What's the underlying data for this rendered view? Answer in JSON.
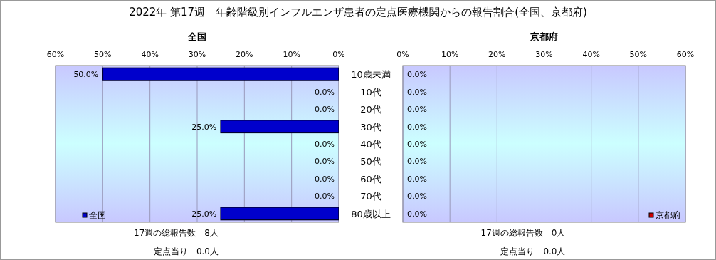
{
  "chart_data": [
    {
      "type": "bar",
      "orientation": "horizontal",
      "title": "2022年 第17週　年齢階級別インフルエンザ患者の定点医療機関からの報告割合(全国、京都府)",
      "subtitle": "全国",
      "categories": [
        "10歳未満",
        "10代",
        "20代",
        "30代",
        "40代",
        "50代",
        "60代",
        "70代",
        "80歳以上"
      ],
      "series": [
        {
          "name": "全国",
          "color": "#0000cc",
          "values": [
            50,
            0,
            0,
            25,
            0,
            0,
            0,
            0,
            25
          ],
          "value_labels": [
            "50.0%",
            "0.0%",
            "0.0%",
            "25.0%",
            "0.0%",
            "0.0%",
            "0.0%",
            "0.0%",
            "25.0%"
          ]
        }
      ],
      "xlim": [
        60,
        0
      ],
      "xticks": [
        {
          "value": 60,
          "label": "60%"
        },
        {
          "value": 50,
          "label": "50%"
        },
        {
          "value": 40,
          "label": "40%"
        },
        {
          "value": 30,
          "label": "30%"
        },
        {
          "value": 20,
          "label": "20%"
        },
        {
          "value": 10,
          "label": "10%"
        },
        {
          "value": 0,
          "label": "0%"
        }
      ],
      "grid": "x",
      "legend": "bottom left",
      "annotations": [
        "17週の総報告数　8人",
        "定点当り　0.0人"
      ]
    },
    {
      "type": "bar",
      "orientation": "horizontal",
      "title": "京都府",
      "series": [
        {
          "name": "京都府",
          "color": "#cc0000",
          "values": [
            0,
            0,
            0,
            0,
            0,
            0,
            0,
            0,
            0
          ],
          "value_labels": [
            "0.0%",
            "0.0%",
            "0.0%",
            "0.0%",
            "0.0%",
            "0.0%",
            "0.0%",
            "0.0%",
            "0.0%"
          ]
        }
      ],
      "xlim": [
        0,
        60
      ],
      "xticks": [
        {
          "value": 0,
          "label": "0%"
        },
        {
          "value": 10,
          "label": "10%"
        },
        {
          "value": 20,
          "label": "20%"
        },
        {
          "value": 30,
          "label": "30%"
        },
        {
          "value": 40,
          "label": "40%"
        },
        {
          "value": 50,
          "label": "50%"
        },
        {
          "value": 60,
          "label": "60%"
        }
      ],
      "grid": "x",
      "legend": "bottom right",
      "tick_labels": "x",
      "annotations": [
        "17週の総報告数　0人",
        "定点当り　0.0人"
      ]
    }
  ]
}
